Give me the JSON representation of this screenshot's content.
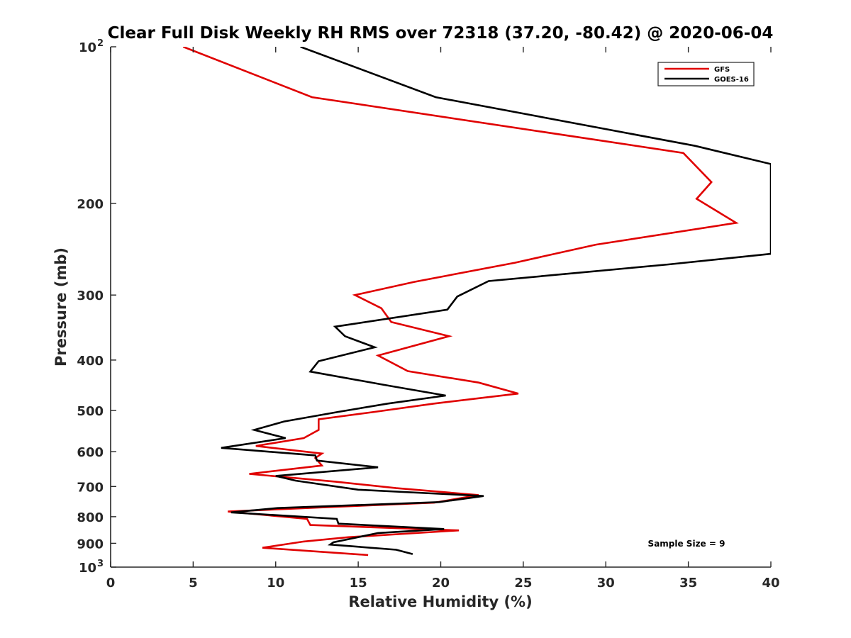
{
  "chart_data": {
    "type": "line",
    "title": "Clear Full Disk Weekly RH RMS over 72318 (37.20, -80.42) @ 2020-06-04",
    "xlabel": "Relative Humidity (%)",
    "ylabel": "Pressure (mb)",
    "xlim": [
      0,
      40
    ],
    "ylim": [
      100,
      1000
    ],
    "yscale": "log",
    "y_reversed": true,
    "grid": false,
    "legend_position": "top-right",
    "x_ticks": [
      {
        "value": 0,
        "label": "0"
      },
      {
        "value": 5,
        "label": "5"
      },
      {
        "value": 10,
        "label": "10"
      },
      {
        "value": 15,
        "label": "15"
      },
      {
        "value": 20,
        "label": "20"
      },
      {
        "value": 25,
        "label": "25"
      },
      {
        "value": 30,
        "label": "30"
      },
      {
        "value": 35,
        "label": "35"
      },
      {
        "value": 40,
        "label": "40"
      }
    ],
    "y_ticks": [
      {
        "value": 100,
        "label": "10",
        "sup": "2"
      },
      {
        "value": 200,
        "label": "200",
        "sup": ""
      },
      {
        "value": 300,
        "label": "300",
        "sup": ""
      },
      {
        "value": 400,
        "label": "400",
        "sup": ""
      },
      {
        "value": 500,
        "label": "500",
        "sup": ""
      },
      {
        "value": 600,
        "label": "600",
        "sup": ""
      },
      {
        "value": 700,
        "label": "700",
        "sup": ""
      },
      {
        "value": 800,
        "label": "800",
        "sup": ""
      },
      {
        "value": 900,
        "label": "900",
        "sup": ""
      },
      {
        "value": 1000,
        "label": "10",
        "sup": "3"
      }
    ],
    "annotation": "Sample Size = 9",
    "series": [
      {
        "name": "GFS",
        "color": "#e00000",
        "points": [
          [
            4.4,
            100
          ],
          [
            12.2,
            125
          ],
          [
            34.7,
            160
          ],
          [
            36.4,
            182
          ],
          [
            35.5,
            196
          ],
          [
            37.9,
            218
          ],
          [
            29.4,
            240
          ],
          [
            24.5,
            260
          ],
          [
            18.4,
            283
          ],
          [
            14.8,
            300
          ],
          [
            16.4,
            318
          ],
          [
            17.0,
            338
          ],
          [
            20.5,
            360
          ],
          [
            16.2,
            392
          ],
          [
            18.0,
            420
          ],
          [
            22.3,
            442
          ],
          [
            24.7,
            464
          ],
          [
            19.6,
            485
          ],
          [
            16.0,
            503
          ],
          [
            12.6,
            520
          ],
          [
            12.6,
            545
          ],
          [
            11.7,
            565
          ],
          [
            8.8,
            585
          ],
          [
            12.8,
            605
          ],
          [
            12.4,
            617
          ],
          [
            12.8,
            638
          ],
          [
            8.4,
            662
          ],
          [
            13.6,
            685
          ],
          [
            17.3,
            705
          ],
          [
            22.3,
            727
          ],
          [
            19.6,
            752
          ],
          [
            12.6,
            768
          ],
          [
            7.1,
            782
          ],
          [
            11.9,
            808
          ],
          [
            12.1,
            830
          ],
          [
            21.1,
            850
          ],
          [
            14.4,
            876
          ],
          [
            11.7,
            893
          ],
          [
            9.2,
            918
          ],
          [
            15.6,
            948
          ]
        ]
      },
      {
        "name": "GOES-16",
        "color": "#000000",
        "points": [
          [
            11.5,
            100
          ],
          [
            19.7,
            125
          ],
          [
            35.4,
            155
          ],
          [
            40.0,
            168
          ],
          [
            40.0,
            250
          ],
          [
            33.8,
            262
          ],
          [
            22.9,
            282
          ],
          [
            21.0,
            302
          ],
          [
            20.4,
            320
          ],
          [
            13.6,
            345
          ],
          [
            14.2,
            360
          ],
          [
            16.0,
            378
          ],
          [
            12.6,
            402
          ],
          [
            12.1,
            421
          ],
          [
            16.5,
            446
          ],
          [
            20.3,
            468
          ],
          [
            16.8,
            485
          ],
          [
            13.8,
            503
          ],
          [
            10.5,
            525
          ],
          [
            8.7,
            545
          ],
          [
            10.6,
            565
          ],
          [
            6.7,
            590
          ],
          [
            12.4,
            610
          ],
          [
            12.5,
            624
          ],
          [
            16.2,
            643
          ],
          [
            10.0,
            668
          ],
          [
            11.2,
            682
          ],
          [
            15.0,
            710
          ],
          [
            22.6,
            730
          ],
          [
            19.9,
            750
          ],
          [
            10.1,
            770
          ],
          [
            7.3,
            785
          ],
          [
            13.7,
            808
          ],
          [
            13.8,
            825
          ],
          [
            20.2,
            845
          ],
          [
            16.2,
            860
          ],
          [
            13.5,
            896
          ],
          [
            13.3,
            905
          ],
          [
            17.3,
            926
          ],
          [
            18.3,
            944
          ]
        ]
      }
    ]
  }
}
